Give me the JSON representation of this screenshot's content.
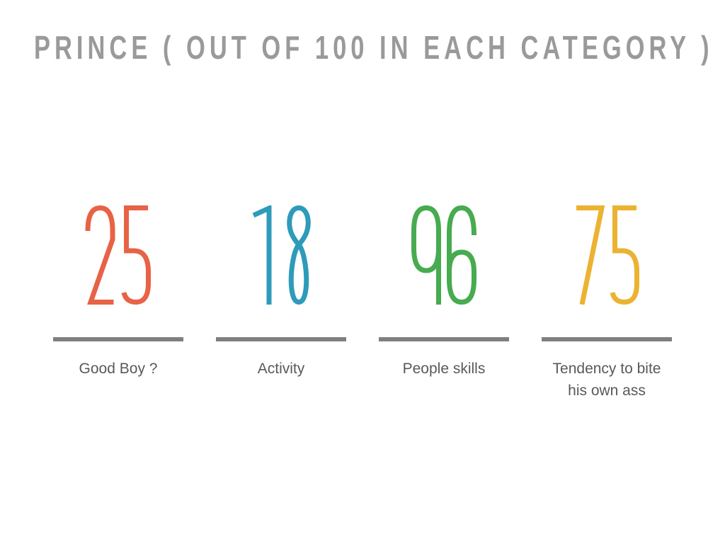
{
  "slide": {
    "title": "PRINCE ( OUT OF 100 IN EACH CATEGORY )"
  },
  "theme": {
    "background": "#ffffff",
    "title_color": "#9a9a9a",
    "bar_color": "#7f7f7f",
    "label_color": "#58595b"
  },
  "stats": [
    {
      "value": "25",
      "label": "Good Boy ?",
      "color": "#e86245"
    },
    {
      "value": "18",
      "label": "Activity",
      "color": "#2d9bb9"
    },
    {
      "value": "96",
      "label": "People skills",
      "color": "#47ab50"
    },
    {
      "value": "75",
      "label": "Tendency to bite his own ass",
      "color": "#ecb231"
    }
  ],
  "chart_data": {
    "type": "table",
    "title": "PRINCE ( OUT OF 100 IN EACH CATEGORY )",
    "categories": [
      "Good Boy ?",
      "Activity",
      "People skills",
      "Tendency to bite his own ass"
    ],
    "values": [
      25,
      18,
      96,
      75
    ],
    "value_range": [
      0,
      100
    ],
    "series_colors": [
      "#e86245",
      "#2d9bb9",
      "#47ab50",
      "#ecb231"
    ],
    "layout": "four stat columns, large colored numbers above gray divider bars with category labels below"
  }
}
